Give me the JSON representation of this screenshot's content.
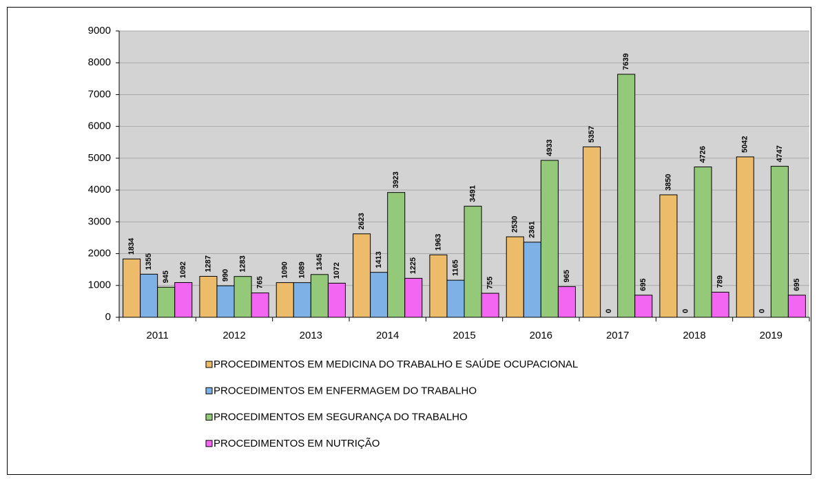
{
  "chart_data": {
    "type": "bar",
    "categories": [
      "2011",
      "2012",
      "2013",
      "2014",
      "2015",
      "2016",
      "2017",
      "2018",
      "2019"
    ],
    "series": [
      {
        "name": "PROCEDIMENTOS EM MEDICINA DO TRABALHO E SAÚDE OCUPACIONAL",
        "color": "#ecbc6a",
        "values": [
          1834,
          1287,
          1090,
          2623,
          1963,
          2530,
          5357,
          3850,
          5042
        ]
      },
      {
        "name": "PROCEDIMENTOS EM ENFERMAGEM DO TRABALHO",
        "color": "#7eb2e6",
        "values": [
          1355,
          990,
          1089,
          1413,
          1165,
          2361,
          0,
          0,
          0
        ]
      },
      {
        "name": "PROCEDIMENTOS EM SEGURANÇA DO TRABALHO",
        "color": "#94c97a",
        "values": [
          945,
          1283,
          1345,
          3923,
          3491,
          4933,
          7639,
          4726,
          4747
        ]
      },
      {
        "name": "PROCEDIMENTOS EM NUTRIÇÃO",
        "color": "#f266f2",
        "values": [
          1092,
          765,
          1072,
          1225,
          755,
          965,
          695,
          789,
          695
        ]
      }
    ],
    "ylim": [
      0,
      9000
    ],
    "yticks": [
      0,
      1000,
      2000,
      3000,
      4000,
      5000,
      6000,
      7000,
      8000,
      9000
    ],
    "grid": true,
    "data_labels": true,
    "legend": "bottom"
  }
}
